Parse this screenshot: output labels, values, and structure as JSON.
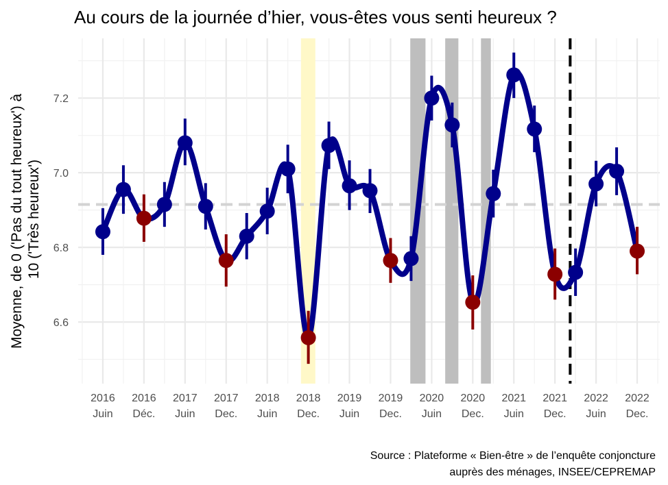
{
  "chart_data": {
    "type": "line",
    "title": "Au cours de la journée d’hier, vous-êtes vous senti heureux ?",
    "ylabel": [
      "Moyenne, de 0 ('Pas du tout heureux') à",
      "10 ('Très heureux')"
    ],
    "caption": [
      "Source : Plateforme « Bien-être » de l’enquête conjoncture",
      "auprès des ménages, INSEE/CEPREMAP"
    ],
    "ylim": [
      6.435,
      7.36
    ],
    "xlim": [
      -0.6,
      13.55
    ],
    "yticks": [
      6.6,
      6.8,
      7.0,
      7.2
    ],
    "xticks": [
      {
        "x": 0,
        "year": "2016",
        "label": "Juin"
      },
      {
        "x": 1,
        "year": "2016",
        "label": "Déc."
      },
      {
        "x": 2,
        "year": "2017",
        "label": "Juin"
      },
      {
        "x": 3,
        "year": "2017",
        "label": "Dec."
      },
      {
        "x": 4,
        "year": "2018",
        "label": "Juin"
      },
      {
        "x": 5,
        "year": "2018",
        "label": "Dec."
      },
      {
        "x": 6,
        "year": "2019",
        "label": "Juin"
      },
      {
        "x": 7,
        "year": "2019",
        "label": "Dec."
      },
      {
        "x": 8,
        "year": "2020",
        "label": "Juin"
      },
      {
        "x": 9,
        "year": "2020",
        "label": "Dec."
      },
      {
        "x": 10,
        "year": "2021",
        "label": "Juin"
      },
      {
        "x": 11,
        "year": "2021",
        "label": "Dec."
      },
      {
        "x": 12,
        "year": "2022",
        "label": "Juin"
      },
      {
        "x": 13,
        "year": "2022",
        "label": "Dec."
      }
    ],
    "mean_line": 6.915,
    "vline_x": 11.37,
    "highlight_bands": [
      {
        "x0": 4.82,
        "x1": 5.17,
        "color": "#fff8c8"
      },
      {
        "x0": 7.48,
        "x1": 7.85,
        "color": "#bebebe"
      },
      {
        "x0": 8.33,
        "x1": 8.65,
        "color": "#bebebe"
      },
      {
        "x0": 9.2,
        "x1": 9.44,
        "color": "#bebebe"
      }
    ],
    "colors": {
      "line": "#00008b",
      "december": "#8b0000",
      "mean": "#d3d3d3",
      "vline": "#000000"
    },
    "points": [
      {
        "x": 0.0,
        "y": 6.842,
        "lo": 6.78,
        "hi": 6.905,
        "month": "Juin"
      },
      {
        "x": 0.5,
        "y": 6.955,
        "lo": 6.89,
        "hi": 7.02,
        "month": "Juin"
      },
      {
        "x": 1.0,
        "y": 6.878,
        "lo": 6.815,
        "hi": 6.942,
        "month": "Déc."
      },
      {
        "x": 1.5,
        "y": 6.915,
        "lo": 6.855,
        "hi": 6.975,
        "month": "Juin"
      },
      {
        "x": 2.0,
        "y": 7.08,
        "lo": 7.02,
        "hi": 7.145,
        "month": "Juin"
      },
      {
        "x": 2.5,
        "y": 6.91,
        "lo": 6.848,
        "hi": 6.972,
        "month": "Juin"
      },
      {
        "x": 3.0,
        "y": 6.765,
        "lo": 6.695,
        "hi": 6.835,
        "month": "Dec."
      },
      {
        "x": 3.5,
        "y": 6.83,
        "lo": 6.768,
        "hi": 6.892,
        "month": "Juin"
      },
      {
        "x": 4.0,
        "y": 6.897,
        "lo": 6.835,
        "hi": 6.96,
        "month": "Juin"
      },
      {
        "x": 4.5,
        "y": 7.01,
        "lo": 6.945,
        "hi": 7.075,
        "month": "Juin"
      },
      {
        "x": 5.0,
        "y": 6.558,
        "lo": 6.488,
        "hi": 6.63,
        "month": "Dec."
      },
      {
        "x": 5.5,
        "y": 7.073,
        "lo": 7.01,
        "hi": 7.137,
        "month": "Juin"
      },
      {
        "x": 6.0,
        "y": 6.965,
        "lo": 6.9,
        "hi": 7.033,
        "month": "Juin"
      },
      {
        "x": 6.5,
        "y": 6.952,
        "lo": 6.892,
        "hi": 7.01,
        "month": "Juin"
      },
      {
        "x": 7.0,
        "y": 6.765,
        "lo": 6.705,
        "hi": 6.825,
        "month": "Dec."
      },
      {
        "x": 7.5,
        "y": 6.77,
        "lo": 6.71,
        "hi": 6.83,
        "month": "Juin"
      },
      {
        "x": 8.0,
        "y": 7.2,
        "lo": 7.14,
        "hi": 7.26,
        "month": "Juin"
      },
      {
        "x": 8.5,
        "y": 7.128,
        "lo": 7.068,
        "hi": 7.188,
        "month": "Juin"
      },
      {
        "x": 9.0,
        "y": 6.653,
        "lo": 6.58,
        "hi": 6.725,
        "month": "Dec."
      },
      {
        "x": 9.5,
        "y": 6.944,
        "lo": 6.88,
        "hi": 7.008,
        "month": "Juin"
      },
      {
        "x": 10.0,
        "y": 7.262,
        "lo": 7.2,
        "hi": 7.322,
        "month": "Juin"
      },
      {
        "x": 10.5,
        "y": 7.117,
        "lo": 7.055,
        "hi": 7.18,
        "month": "Juin"
      },
      {
        "x": 11.0,
        "y": 6.728,
        "lo": 6.66,
        "hi": 6.797,
        "month": "Dec."
      },
      {
        "x": 11.5,
        "y": 6.733,
        "lo": 6.67,
        "hi": 6.797,
        "month": "Juin"
      },
      {
        "x": 12.0,
        "y": 6.97,
        "lo": 6.91,
        "hi": 7.032,
        "month": "Juin"
      },
      {
        "x": 12.5,
        "y": 7.004,
        "lo": 6.94,
        "hi": 7.068,
        "month": "Juin"
      },
      {
        "x": 13.0,
        "y": 6.79,
        "lo": 6.728,
        "hi": 6.855,
        "month": "Dec."
      }
    ]
  }
}
